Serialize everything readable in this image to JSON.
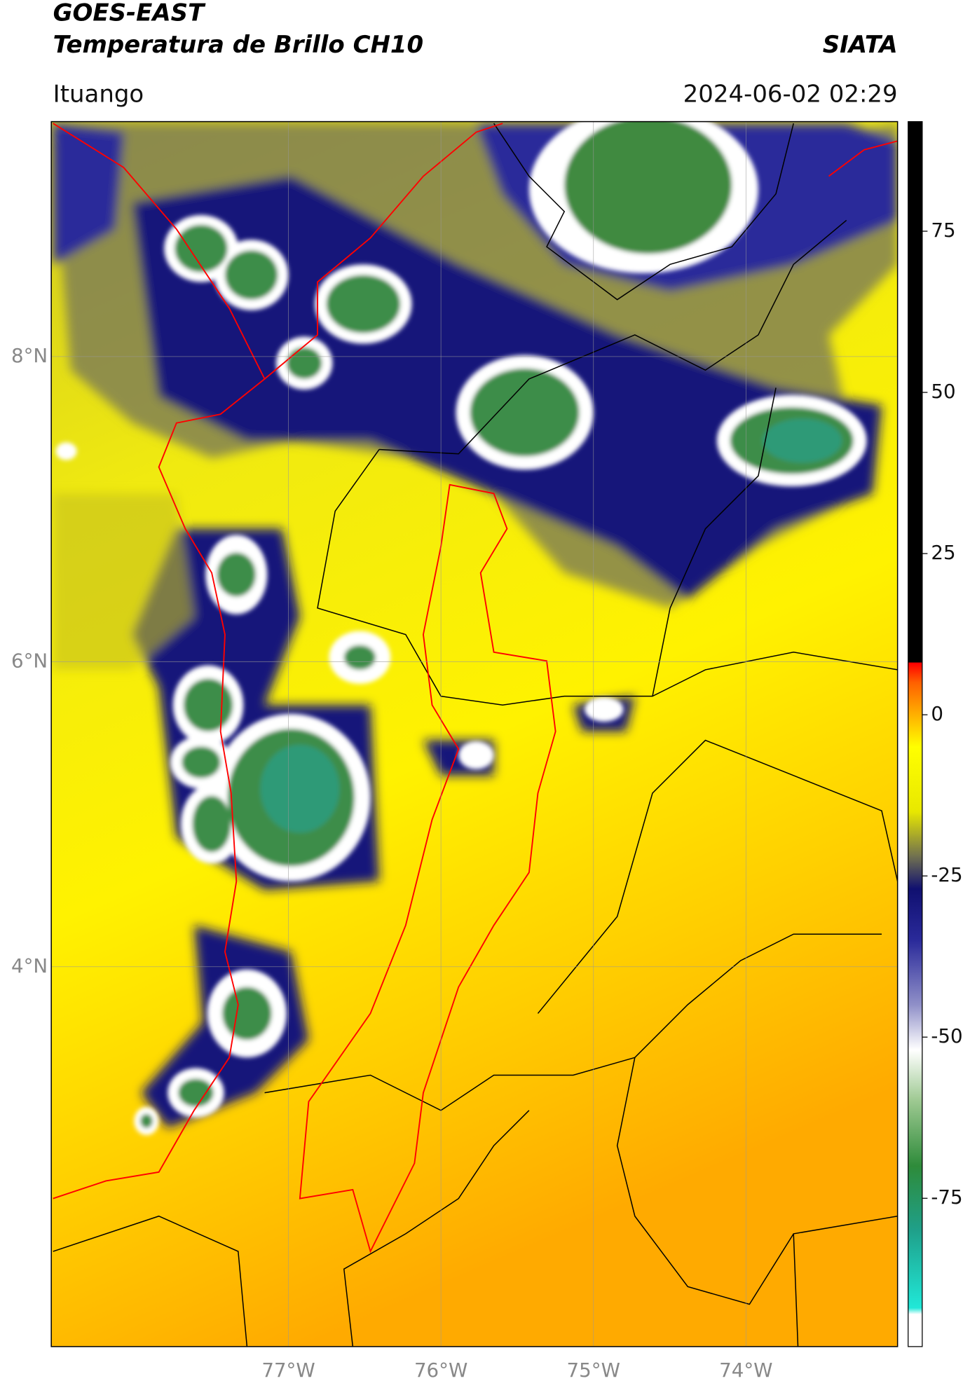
{
  "header": {
    "title": "GOES-EAST",
    "subtitle": "Temperatura de Brillo CH10",
    "brand": "SIATA",
    "location": "Ituango",
    "timestamp": "2024-06-02 02:29"
  },
  "map": {
    "xlim": [
      -78.555,
      -73.006
    ],
    "ylim": [
      1.51,
      9.54
    ],
    "xticks": [
      {
        "value": -77,
        "label": "77°W"
      },
      {
        "value": -76,
        "label": "76°W"
      },
      {
        "value": -75,
        "label": "75°W"
      },
      {
        "value": -74,
        "label": "74°W"
      }
    ],
    "yticks": [
      {
        "value": 8,
        "label": "8°N"
      },
      {
        "value": 6,
        "label": "6°N"
      },
      {
        "value": 4,
        "label": "4°N"
      }
    ],
    "grid": true
  },
  "colorbar": {
    "lim": [
      -98,
      92
    ],
    "ticks": [
      75,
      50,
      25,
      0,
      -25,
      -50,
      -75
    ],
    "stops": [
      {
        "value": -98,
        "color": "#ffffff"
      },
      {
        "value": -93,
        "color": "#ffffff"
      },
      {
        "value": -92,
        "color": "#20e8d8"
      },
      {
        "value": -80,
        "color": "#1fa08a"
      },
      {
        "value": -70,
        "color": "#2e8b3a"
      },
      {
        "value": -60,
        "color": "#9cc890"
      },
      {
        "value": -52,
        "color": "#ffffff"
      },
      {
        "value": -45,
        "color": "#9090c8"
      },
      {
        "value": -35,
        "color": "#2a2a9a"
      },
      {
        "value": -27,
        "color": "#101070"
      },
      {
        "value": -22,
        "color": "#707050"
      },
      {
        "value": -15,
        "color": "#e8e800"
      },
      {
        "value": -5,
        "color": "#ffff00"
      },
      {
        "value": 0,
        "color": "#ffb000"
      },
      {
        "value": 5,
        "color": "#ff6000"
      },
      {
        "value": 8,
        "color": "#ff0000"
      },
      {
        "value": 8.2,
        "color": "#000000"
      },
      {
        "value": 92,
        "color": "#000000"
      }
    ]
  }
}
